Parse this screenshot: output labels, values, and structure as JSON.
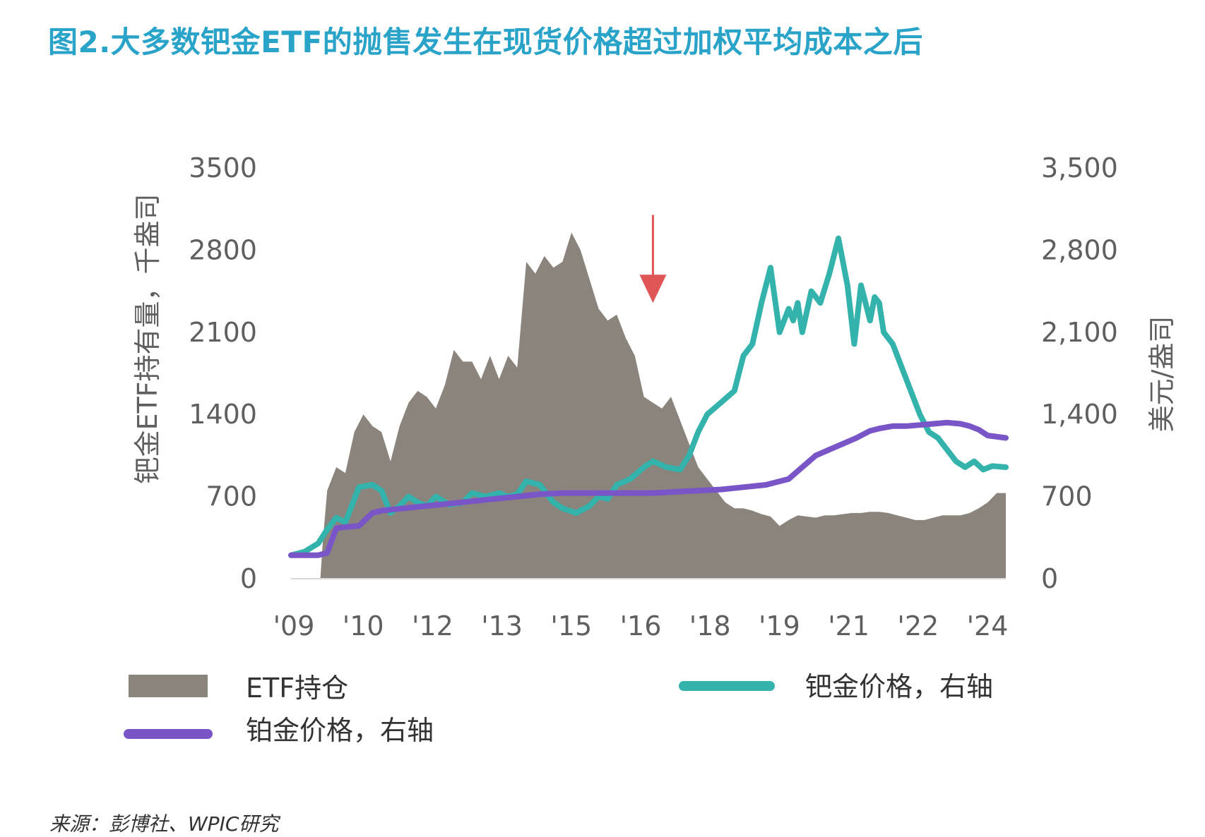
{
  "title": "图2.大多数钯金ETF的抛售发生在现货价格超过加权平均成本之后",
  "source": "来源：彭博社、WPIC研究",
  "colors": {
    "title": "#2aa3c9",
    "etf": "#8a847c",
    "palladium": "#33b3ab",
    "platinum": "#7a55c8",
    "arrow": "#e05555",
    "axis_text": "#5f5f5f"
  },
  "chart_data": {
    "type": "area+line",
    "yleft": {
      "label": "钯金ETF持有量，千盎司",
      "ticks": [
        "3500",
        "2800",
        "2100",
        "1400",
        "700",
        "0"
      ],
      "ylim": [
        0,
        3500
      ]
    },
    "yright": {
      "label": "美元/盎司",
      "ticks": [
        "3,500",
        "2,800",
        "2,100",
        "1,400",
        "700",
        "0"
      ],
      "ylim": [
        0,
        3500
      ]
    },
    "x_ticks": [
      "'09",
      "'10",
      "'12",
      "'13",
      "'15",
      "'16",
      "'18",
      "'19",
      "'21",
      "'22",
      "'24"
    ],
    "xlim": [
      2009.0,
      2024.8
    ],
    "legend": [
      {
        "label": "ETF持仓",
        "series": "etf",
        "marker": "area"
      },
      {
        "label": "钯金价格，右轴",
        "series": "palladium",
        "marker": "line"
      },
      {
        "label": "铂金价格，右轴",
        "series": "platinum",
        "marker": "line"
      }
    ],
    "annotation": {
      "type": "down-arrow",
      "x": 2017.0,
      "y_top": 3100,
      "y_bottom": 2350
    },
    "series": [
      {
        "key": "etf",
        "type": "area",
        "axis": "left",
        "x": [
          2009.0,
          2009.65,
          2009.7,
          2009.8,
          2010.0,
          2010.2,
          2010.4,
          2010.6,
          2010.8,
          2011.0,
          2011.2,
          2011.4,
          2011.6,
          2011.8,
          2012.0,
          2012.2,
          2012.4,
          2012.6,
          2012.8,
          2013.0,
          2013.2,
          2013.4,
          2013.6,
          2013.8,
          2014.0,
          2014.2,
          2014.4,
          2014.6,
          2014.8,
          2015.0,
          2015.2,
          2015.4,
          2015.6,
          2015.8,
          2016.0,
          2016.2,
          2016.4,
          2016.6,
          2016.8,
          2017.0,
          2017.2,
          2017.4,
          2017.6,
          2017.8,
          2018.0,
          2018.2,
          2018.4,
          2018.6,
          2018.8,
          2019.0,
          2019.2,
          2019.4,
          2019.6,
          2019.8,
          2020.0,
          2020.2,
          2020.4,
          2020.6,
          2020.8,
          2021.0,
          2021.2,
          2021.4,
          2021.6,
          2021.8,
          2022.0,
          2022.2,
          2022.4,
          2022.6,
          2022.8,
          2023.0,
          2023.2,
          2023.4,
          2023.6,
          2023.8,
          2024.0,
          2024.2,
          2024.4,
          2024.6,
          2024.8
        ],
        "y": [
          0,
          0,
          300,
          750,
          950,
          900,
          1250,
          1400,
          1300,
          1250,
          1000,
          1300,
          1500,
          1600,
          1550,
          1450,
          1650,
          1950,
          1850,
          1850,
          1700,
          1900,
          1700,
          1900,
          1800,
          2700,
          2600,
          2750,
          2650,
          2700,
          2950,
          2800,
          2550,
          2300,
          2200,
          2250,
          2050,
          1900,
          1550,
          1500,
          1450,
          1550,
          1350,
          1150,
          950,
          850,
          750,
          650,
          600,
          600,
          580,
          550,
          530,
          450,
          500,
          540,
          530,
          520,
          540,
          540,
          550,
          560,
          560,
          570,
          570,
          560,
          540,
          520,
          500,
          500,
          520,
          540,
          540,
          540,
          560,
          600,
          650,
          730,
          730
        ]
      },
      {
        "key": "palladium",
        "type": "line",
        "axis": "right",
        "x": [
          2009.0,
          2009.3,
          2009.6,
          2009.8,
          2010.0,
          2010.2,
          2010.5,
          2010.8,
          2011.0,
          2011.2,
          2011.4,
          2011.6,
          2011.8,
          2012.0,
          2012.2,
          2012.5,
          2012.8,
          2013.0,
          2013.3,
          2013.6,
          2013.8,
          2014.0,
          2014.2,
          2014.5,
          2014.8,
          2015.0,
          2015.3,
          2015.6,
          2015.8,
          2016.0,
          2016.2,
          2016.5,
          2016.8,
          2017.0,
          2017.3,
          2017.6,
          2017.8,
          2018.0,
          2018.2,
          2018.5,
          2018.8,
          2019.0,
          2019.2,
          2019.4,
          2019.6,
          2019.8,
          2020.0,
          2020.1,
          2020.2,
          2020.3,
          2020.5,
          2020.7,
          2020.9,
          2021.1,
          2021.3,
          2021.45,
          2021.6,
          2021.8,
          2021.9,
          2022.0,
          2022.1,
          2022.3,
          2022.5,
          2022.7,
          2022.9,
          2023.1,
          2023.3,
          2023.5,
          2023.7,
          2023.9,
          2024.1,
          2024.3,
          2024.5,
          2024.8
        ],
        "y": [
          200,
          230,
          300,
          420,
          520,
          480,
          780,
          800,
          750,
          560,
          620,
          700,
          650,
          620,
          700,
          630,
          650,
          730,
          700,
          730,
          700,
          720,
          830,
          800,
          650,
          600,
          560,
          620,
          700,
          680,
          800,
          850,
          950,
          1000,
          950,
          930,
          1050,
          1250,
          1400,
          1500,
          1600,
          1900,
          2000,
          2350,
          2650,
          2100,
          2300,
          2200,
          2350,
          2100,
          2450,
          2350,
          2600,
          2900,
          2500,
          2000,
          2500,
          2200,
          2400,
          2350,
          2100,
          2000,
          1800,
          1600,
          1400,
          1250,
          1200,
          1100,
          1000,
          950,
          1000,
          930,
          960,
          950
        ]
      },
      {
        "key": "platinum",
        "type": "line",
        "axis": "right",
        "x": [
          2009.0,
          2009.3,
          2009.6,
          2009.8,
          2010.0,
          2010.2,
          2010.5,
          2010.8,
          2011.0,
          2011.5,
          2012.0,
          2012.5,
          2013.0,
          2013.5,
          2014.0,
          2014.5,
          2015.0,
          2015.5,
          2016.0,
          2016.5,
          2017.0,
          2017.5,
          2018.0,
          2018.5,
          2019.0,
          2019.5,
          2020.0,
          2020.3,
          2020.6,
          2020.9,
          2021.2,
          2021.5,
          2021.8,
          2022.0,
          2022.3,
          2022.6,
          2022.9,
          2023.2,
          2023.5,
          2023.8,
          2024.0,
          2024.2,
          2024.4,
          2024.8
        ],
        "y": [
          200,
          200,
          200,
          220,
          430,
          440,
          450,
          560,
          580,
          600,
          620,
          640,
          660,
          680,
          700,
          720,
          730,
          730,
          730,
          730,
          730,
          740,
          750,
          760,
          780,
          800,
          850,
          950,
          1050,
          1100,
          1150,
          1200,
          1260,
          1280,
          1300,
          1300,
          1310,
          1320,
          1330,
          1320,
          1300,
          1270,
          1220,
          1200
        ]
      }
    ]
  }
}
